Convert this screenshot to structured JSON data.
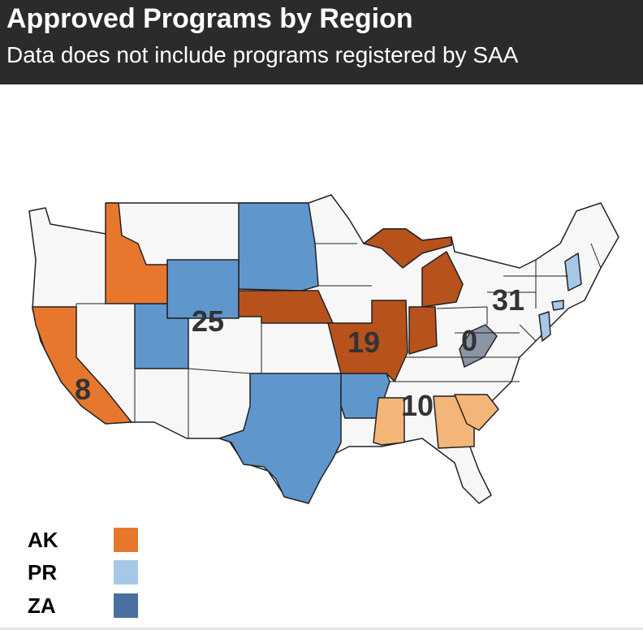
{
  "header": {
    "title": "Approved Programs by Region",
    "subtitle": "Data does not include programs registered by SAA"
  },
  "map": {
    "labels": {
      "west_coast": "8",
      "mountain": "25",
      "midwest": "19",
      "southeast": "10",
      "mid_atlantic": "0",
      "northeast": "31"
    }
  },
  "legend": {
    "items": [
      {
        "label": "AK",
        "color": "#e8772e"
      },
      {
        "label": "PR",
        "color": "#a6c8e8"
      },
      {
        "label": "ZA",
        "color": "#4a6fa0"
      }
    ]
  },
  "colors": {
    "orange": "#e8772e",
    "dark_orange": "#b8521d",
    "light_orange": "#f4b678",
    "blue": "#5f97cc",
    "light_blue": "#a6c8e8",
    "gray": "#8a96a6",
    "neutral": "#f7f7f7"
  }
}
